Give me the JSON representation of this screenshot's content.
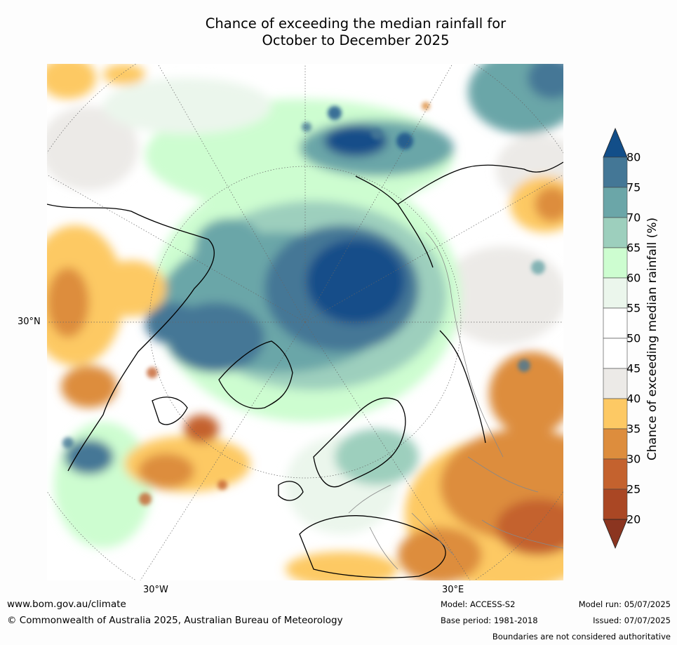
{
  "title": {
    "line1": "Chance of exceeding the median rainfall for",
    "line2": "October to December 2025"
  },
  "map": {
    "projection": "north-polar-stereographic",
    "lat_label": "30°N",
    "lon_labels": [
      "30°W",
      "30°E"
    ],
    "features": [
      "coastlines",
      "country-borders",
      "graticule",
      "contours"
    ]
  },
  "colorbar": {
    "label": "Chance of exceeding median rainfall (%)",
    "ticks": [
      "80",
      "75",
      "70",
      "65",
      "60",
      "55",
      "50",
      "45",
      "40",
      "35",
      "30",
      "25",
      "20"
    ],
    "colors": {
      "above_80": "#124e89",
      "75_80": "#447796",
      "70_75": "#6ba6a8",
      "65_70": "#9dcfbd",
      "60_65": "#cdfdd0",
      "55_60": "#ebf6ec",
      "50_55": "#ffffff",
      "45_50": "#ffffff",
      "40_45": "#eceae7",
      "35_40": "#fdc964",
      "30_35": "#dd8d3d",
      "25_30": "#c4622e",
      "20_25": "#aa4724",
      "below_20": "#8b3520"
    }
  },
  "footer": {
    "website": "www.bom.gov.au/climate",
    "copyright": "© Commonwealth of Australia 2025, Australian Bureau of Meteorology",
    "model": "Model: ACCESS-S2",
    "base_period": "Base period: 1981-2018",
    "model_run": "Model run: 05/07/2025",
    "issued": "Issued: 07/07/2025",
    "disclaimer": "Boundaries are not considered authoritative"
  }
}
